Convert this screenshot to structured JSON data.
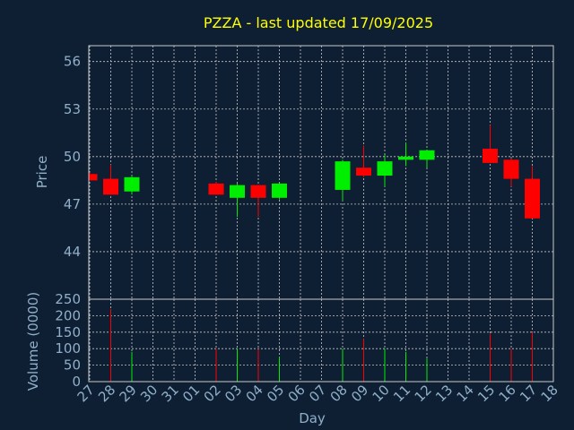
{
  "chart_data": {
    "type": "candlestick",
    "title": "PZZA - last updated 17/09/2025",
    "xlabel": "Day",
    "price_panel": {
      "ylabel": "Price",
      "ylim": [
        41,
        57
      ],
      "yticks": [
        44,
        47,
        50,
        53,
        56
      ]
    },
    "volume_panel": {
      "ylabel": "Volume (0000)",
      "ylim": [
        0,
        250
      ],
      "yticks": [
        0,
        50,
        100,
        150,
        200,
        250
      ]
    },
    "x_ticks": [
      "27",
      "28",
      "29",
      "30",
      "31",
      "01",
      "02",
      "03",
      "04",
      "05",
      "06",
      "07",
      "08",
      "09",
      "10",
      "11",
      "12",
      "13",
      "14",
      "15",
      "16",
      "17",
      "18"
    ],
    "grid": true,
    "colors": {
      "up": "#00ee00",
      "down": "#ff0000",
      "title": "#ffff00",
      "axis": "#8fb0c8",
      "background": "#0f1f33"
    },
    "candles": [
      {
        "day": "27",
        "open": 48.9,
        "high": 49.0,
        "low": 48.5,
        "close": 48.5,
        "volume": 0
      },
      {
        "day": "28",
        "open": 48.6,
        "high": 49.5,
        "low": 47.6,
        "close": 47.6,
        "volume": 220
      },
      {
        "day": "29",
        "open": 47.8,
        "high": 48.8,
        "low": 47.6,
        "close": 48.7,
        "volume": 90
      },
      {
        "day": "02",
        "open": 48.3,
        "high": 48.4,
        "low": 47.6,
        "close": 47.6,
        "volume": 100
      },
      {
        "day": "03",
        "open": 47.4,
        "high": 48.3,
        "low": 46.2,
        "close": 48.2,
        "volume": 100
      },
      {
        "day": "04",
        "open": 48.2,
        "high": 48.2,
        "low": 46.2,
        "close": 47.4,
        "volume": 100
      },
      {
        "day": "05",
        "open": 47.4,
        "high": 48.3,
        "low": 47.3,
        "close": 48.3,
        "volume": 75
      },
      {
        "day": "08",
        "open": 47.9,
        "high": 49.8,
        "low": 47.2,
        "close": 49.7,
        "volume": 100
      },
      {
        "day": "09",
        "open": 49.3,
        "high": 50.7,
        "low": 48.7,
        "close": 48.8,
        "volume": 130
      },
      {
        "day": "10",
        "open": 48.8,
        "high": 50.1,
        "low": 48.1,
        "close": 49.7,
        "volume": 100
      },
      {
        "day": "11",
        "open": 49.8,
        "high": 50.9,
        "low": 49.4,
        "close": 50.0,
        "volume": 90
      },
      {
        "day": "12",
        "open": 49.8,
        "high": 50.4,
        "low": 49.3,
        "close": 50.4,
        "volume": 70
      },
      {
        "day": "15",
        "open": 50.5,
        "high": 52.0,
        "low": 49.6,
        "close": 49.6,
        "volume": 145
      },
      {
        "day": "16",
        "open": 49.8,
        "high": 49.9,
        "low": 48.1,
        "close": 48.6,
        "volume": 100
      },
      {
        "day": "17",
        "open": 48.6,
        "high": 49.4,
        "low": 46.1,
        "close": 46.1,
        "volume": 150
      }
    ]
  }
}
